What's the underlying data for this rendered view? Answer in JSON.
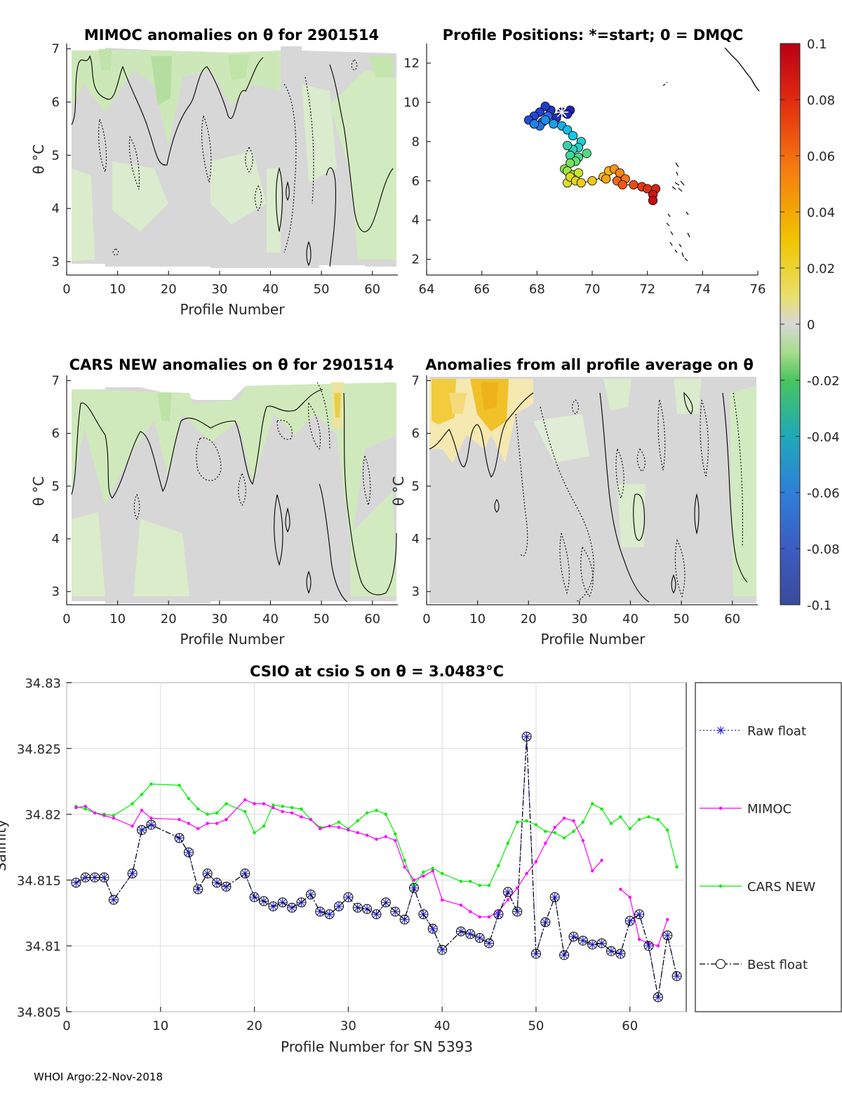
{
  "footer": "WHOI Argo:22-Nov-2018",
  "colors": {
    "raw": "#2222cc",
    "mimoc": "#ff00ff",
    "cars": "#00ee00",
    "best": "#000000",
    "field": "#d7d7d7"
  },
  "chart_data": [
    {
      "id": "mimoc",
      "type": "heatmap",
      "title": "MIMOC anomalies on θ  for 2901514",
      "xlabel": "Profile Number",
      "ylabel": "θ °C",
      "xlim": [
        0,
        65
      ],
      "ylim": [
        2.75,
        7.1
      ],
      "xticks": [
        "0",
        "10",
        "20",
        "30",
        "40",
        "50",
        "60"
      ],
      "yticks": [
        "3",
        "4",
        "5",
        "6",
        "7"
      ]
    },
    {
      "id": "positions",
      "type": "scatter",
      "title": "Profile Positions: *=start; 0 = DMQC",
      "xlim": [
        64,
        76
      ],
      "ylim": [
        1.2,
        13
      ],
      "xticks": [
        "64",
        "66",
        "68",
        "70",
        "72",
        "74",
        "76"
      ],
      "yticks": [
        "2",
        "4",
        "6",
        "8",
        "10",
        "12"
      ],
      "x": [
        68.9,
        69.2,
        69.1,
        68.7,
        68.5,
        68.3,
        68.1,
        67.9,
        67.7,
        67.9,
        68.2,
        68.4,
        68.1,
        67.9,
        68.3,
        68.6,
        68.9,
        69.1,
        69.3,
        69.6,
        69.5,
        69.3,
        69.1,
        69.2,
        69.5,
        69.8,
        69.4,
        69.2,
        69.0,
        69.1,
        69.3,
        69.5,
        69.3,
        69.1,
        69.2,
        69.4,
        69.6,
        70.0,
        70.4,
        70.6,
        70.5,
        70.8,
        71.0,
        71.2,
        70.9,
        71.1,
        71.5,
        71.8,
        72.0,
        72.3,
        72.2,
        72.2
      ],
      "y": [
        9.5,
        9.6,
        9.4,
        9.2,
        9.6,
        9.8,
        9.5,
        9.3,
        9.1,
        8.9,
        9.0,
        9.3,
        8.8,
        8.9,
        9.1,
        8.9,
        8.8,
        8.6,
        8.3,
        8.0,
        7.7,
        7.6,
        7.8,
        7.3,
        7.2,
        7.4,
        7.0,
        6.9,
        6.6,
        6.5,
        6.3,
        6.4,
        6.1,
        5.9,
        6.2,
        6.0,
        5.9,
        6.0,
        6.2,
        6.5,
        6.1,
        6.6,
        6.4,
        6.1,
        6.0,
        5.8,
        5.8,
        5.7,
        5.6,
        5.6,
        5.3,
        5.0
      ],
      "start": [
        68.9,
        9.5
      ],
      "colorbar": {
        "ticks": [
          "0.1",
          "0.08",
          "0.06",
          "0.04",
          "0.02",
          "0",
          "-0.02",
          "-0.04",
          "-0.06",
          "-0.08",
          "-0.1"
        ]
      }
    },
    {
      "id": "cars",
      "type": "heatmap",
      "title": "CARS NEW anomalies on θ for 2901514",
      "xlabel": "Profile Number",
      "ylabel": "θ °C",
      "xlim": [
        0,
        65
      ],
      "ylim": [
        2.75,
        7.1
      ],
      "xticks": [
        "0",
        "10",
        "20",
        "30",
        "40",
        "50",
        "60"
      ],
      "yticks": [
        "3",
        "4",
        "5",
        "6",
        "7"
      ]
    },
    {
      "id": "avg",
      "type": "heatmap",
      "title": "Anomalies from all profile average on θ",
      "xlabel": "Profile Number",
      "ylabel": "θ °C",
      "xlim": [
        0,
        65
      ],
      "ylim": [
        2.75,
        7.1
      ],
      "xticks": [
        "0",
        "10",
        "20",
        "30",
        "40",
        "50",
        "60"
      ],
      "yticks": [
        "3",
        "4",
        "5",
        "6",
        "7"
      ]
    },
    {
      "id": "csio",
      "type": "line",
      "title": "CSIO at csio S on θ = 3.0483°C",
      "xlabel": "Profile Number for SN 5393",
      "ylabel": "Salinity",
      "xlim": [
        0,
        66
      ],
      "ylim": [
        34.805,
        34.83
      ],
      "xticks": [
        "0",
        "10",
        "20",
        "30",
        "40",
        "50",
        "60"
      ],
      "yticks": [
        "34.805",
        "34.81",
        "34.815",
        "34.82",
        "34.825",
        "34.83"
      ],
      "x": [
        1,
        2,
        3,
        4,
        5,
        7,
        8,
        9,
        12,
        13,
        14,
        15,
        16,
        17,
        19,
        20,
        21,
        22,
        23,
        24,
        25,
        26,
        27,
        28,
        29,
        30,
        31,
        32,
        33,
        34,
        35,
        36,
        37,
        38,
        39,
        40,
        42,
        43,
        44,
        45,
        46,
        47,
        48,
        49,
        50,
        51,
        52,
        53,
        54,
        55,
        56,
        57,
        58,
        59,
        60,
        61,
        62,
        63,
        64,
        65
      ],
      "series": [
        {
          "name": "Raw float",
          "values": [
            34.8148,
            34.8152,
            34.8152,
            34.8152,
            34.8135,
            34.8155,
            34.8188,
            34.8192,
            34.8182,
            34.8171,
            34.8143,
            34.8155,
            34.8148,
            34.8145,
            34.8155,
            34.8137,
            34.8134,
            34.813,
            34.8133,
            34.8129,
            34.8133,
            34.8139,
            34.8126,
            34.8124,
            34.813,
            34.8137,
            34.8129,
            34.8128,
            34.8124,
            34.8133,
            34.8126,
            34.812,
            34.8144,
            34.8124,
            34.8113,
            34.8097,
            34.8111,
            34.8109,
            34.8106,
            34.8102,
            34.8124,
            34.8141,
            34.8126,
            34.8259,
            34.8094,
            34.8118,
            34.8137,
            34.8093,
            34.8107,
            34.8104,
            34.8101,
            34.8102,
            34.8096,
            34.8094,
            34.8119,
            34.8124,
            34.81,
            34.8061,
            34.8108,
            34.8077
          ]
        },
        {
          "name": "MIMOC",
          "values": [
            34.8205,
            34.8206,
            34.8201,
            34.8199,
            34.8197,
            34.8191,
            34.8203,
            34.8197,
            34.8196,
            34.8193,
            34.8189,
            34.8193,
            34.8193,
            34.8196,
            34.8211,
            34.8208,
            34.8208,
            34.8205,
            34.8202,
            34.8201,
            34.8198,
            34.8196,
            34.8189,
            34.8191,
            34.819,
            34.8188,
            34.8186,
            34.8184,
            34.8181,
            34.8183,
            34.818,
            34.816,
            34.815,
            34.8153,
            34.8157,
            34.8135,
            34.8131,
            34.8126,
            34.8122,
            34.8122,
            34.8126,
            34.8135,
            34.8144,
            34.8155,
            34.8164,
            34.8178,
            34.819,
            34.8197,
            34.8195,
            34.818,
            34.8157,
            34.8165,
            null,
            34.8143,
            34.8137,
            34.8105,
            34.8102,
            34.81,
            34.812,
            null
          ]
        },
        {
          "name": "CARS NEW",
          "values": [
            34.8206,
            34.8204,
            34.8201,
            34.82,
            34.8199,
            34.8208,
            34.8215,
            34.8223,
            34.8222,
            34.8212,
            34.8204,
            34.82,
            34.8201,
            34.8208,
            34.8202,
            34.8186,
            34.8191,
            34.8207,
            34.8206,
            34.8205,
            34.8204,
            34.8196,
            34.819,
            34.8191,
            34.8194,
            34.8189,
            34.8195,
            34.8201,
            34.8203,
            34.82,
            34.8185,
            34.8165,
            34.8146,
            34.8156,
            34.8159,
            34.8155,
            34.8149,
            34.8149,
            34.8146,
            34.8146,
            34.8161,
            34.8178,
            34.8194,
            34.8195,
            34.8192,
            34.8187,
            34.8186,
            34.8182,
            34.8187,
            34.8194,
            34.8208,
            34.8204,
            34.8193,
            34.8198,
            34.8189,
            34.8196,
            34.8198,
            34.8196,
            34.8188,
            34.816
          ]
        },
        {
          "name": "Best float",
          "values": [
            34.8148,
            34.8152,
            34.8152,
            34.8152,
            34.8135,
            34.8155,
            34.8188,
            34.8192,
            34.8182,
            34.8171,
            34.8143,
            34.8155,
            34.8148,
            34.8145,
            34.8155,
            34.8137,
            34.8134,
            34.813,
            34.8133,
            34.8129,
            34.8133,
            34.8139,
            34.8126,
            34.8124,
            34.813,
            34.8137,
            34.8129,
            34.8128,
            34.8124,
            34.8133,
            34.8126,
            34.812,
            34.8144,
            34.8124,
            34.8113,
            34.8097,
            34.8111,
            34.8109,
            34.8106,
            34.8102,
            34.8124,
            34.8141,
            34.8126,
            34.8259,
            34.8094,
            34.8118,
            34.8137,
            34.8093,
            34.8107,
            34.8104,
            34.8101,
            34.8102,
            34.8096,
            34.8094,
            34.8119,
            34.8124,
            34.81,
            34.8061,
            34.8108,
            34.8077
          ]
        }
      ]
    }
  ]
}
